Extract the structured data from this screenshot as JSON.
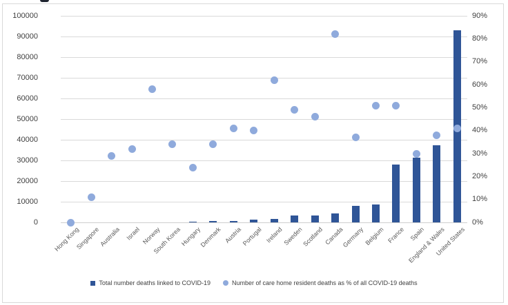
{
  "window": {
    "background": "#FFFFFF",
    "border_color": "#D9D9D9"
  },
  "chart_data": {
    "type": "bar",
    "subtype": "combo-bar-scatter",
    "title": "",
    "categories": [
      "Hong Kong",
      "Singapore",
      "Australia",
      "Israel",
      "Norway",
      "South Korea",
      "Hungary",
      "Denmark",
      "Austria",
      "Portugal",
      "Ireland",
      "Sweden",
      "Scotland",
      "Canada",
      "Germany",
      "Belgium",
      "France",
      "Spain",
      "England & Wales",
      "United States"
    ],
    "series": [
      {
        "name": "Total number deaths linked to COVID-19",
        "type": "bar",
        "axis": "left",
        "color": "#2F5597",
        "values": [
          0,
          0,
          0,
          0,
          0,
          0,
          500,
          550,
          650,
          1400,
          1650,
          3200,
          3400,
          4400,
          8000,
          8800,
          28000,
          31500,
          37300,
          93000
        ]
      },
      {
        "name": "Number of care home resident deaths as % of all COVID-19 deaths",
        "type": "scatter",
        "axis": "right",
        "color": "#8FAADC",
        "values": [
          0,
          11,
          29,
          32,
          58,
          34,
          24,
          34,
          41,
          40,
          62,
          49,
          46,
          82,
          37,
          51,
          51,
          30,
          38,
          41
        ]
      }
    ],
    "left_axis": {
      "min": 0,
      "max": 100000,
      "tick_step": 10000,
      "tick_labels": [
        "100000",
        "90000",
        "80000",
        "70000",
        "60000",
        "50000",
        "40000",
        "30000",
        "20000",
        "10000",
        "0"
      ]
    },
    "right_axis": {
      "min": 0,
      "max": 90,
      "tick_step": 10,
      "unit": "%",
      "tick_labels": [
        "90%",
        "80%",
        "70%",
        "60%",
        "50%",
        "40%",
        "30%",
        "20%",
        "10%",
        "0%"
      ]
    },
    "gridlines": true,
    "gridline_color": "#D9D9D9",
    "legend_position": "bottom"
  },
  "legend": {
    "items": [
      {
        "label": "Total number deaths linked to COVID-19",
        "marker": "square",
        "color": "#2F5597"
      },
      {
        "label": "Number of care home resident deaths as % of all COVID-19 deaths",
        "marker": "circle",
        "color": "#8FAADC"
      }
    ]
  },
  "text_colors": {
    "axis_ticks": "#404040",
    "category_labels": "#595959"
  }
}
